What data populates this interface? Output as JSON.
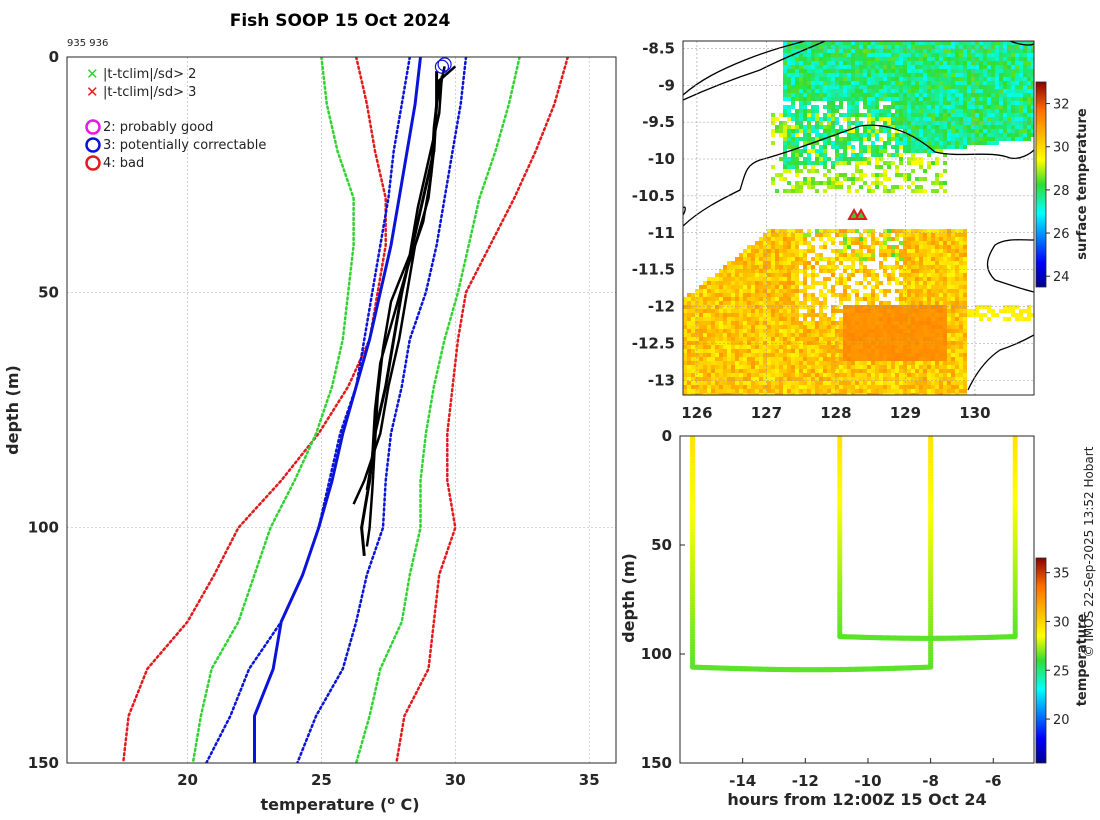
{
  "figure": {
    "title": "Fish SOOP 15 Oct 2024",
    "profile_ids": "935 936",
    "credit": "© IMOS 22-Sep-2025 13:52 Hobart"
  },
  "colors": {
    "red": "#e31a1c",
    "green": "#32d232",
    "blue": "#0a14d8",
    "magenta": "#e619e6",
    "black": "#000000",
    "grid": "#bdbdbd"
  },
  "legend": {
    "flags": [
      {
        "label": "|t-tclim|/sd> 2",
        "color": "#32d232",
        "marker": "x"
      },
      {
        "label": "|t-tclim|/sd> 3",
        "color": "#e31a1c",
        "marker": "x"
      }
    ],
    "qc": [
      {
        "label": "2: probably good",
        "color": "#e619e6"
      },
      {
        "label": "3: potentially correctable",
        "color": "#0a14d8"
      },
      {
        "label": "4: bad",
        "color": "#e31a1c"
      }
    ]
  },
  "chart_data": [
    {
      "id": "profile",
      "type": "line",
      "title": "Fish SOOP 15 Oct 2024",
      "xlabel": "temperature (",
      "xlabel_sup": "o",
      "xlabel_end": " C)",
      "ylabel": "depth (m)",
      "xlim": [
        15.5,
        36.0
      ],
      "ylim": [
        150,
        0
      ],
      "xticks": [
        20,
        25,
        30,
        35
      ],
      "yticks": [
        0,
        50,
        100,
        150
      ],
      "grid": true,
      "series": [
        {
          "name": "clim-3sd-low",
          "color": "#e31a1c",
          "dash": true,
          "width": 2.5,
          "points": [
            [
              26.3,
              0
            ],
            [
              26.5,
              5
            ],
            [
              26.7,
              10
            ],
            [
              27.0,
              20
            ],
            [
              27.4,
              30
            ],
            [
              27.4,
              40
            ],
            [
              27.1,
              50
            ],
            [
              26.8,
              60
            ],
            [
              26.0,
              70
            ],
            [
              24.9,
              80
            ],
            [
              23.5,
              90
            ],
            [
              21.9,
              100
            ],
            [
              21.0,
              110
            ],
            [
              20.0,
              120
            ],
            [
              18.5,
              130
            ],
            [
              17.8,
              140
            ],
            [
              17.6,
              150
            ]
          ]
        },
        {
          "name": "clim-2sd-low",
          "color": "#32d232",
          "dash": true,
          "width": 2.5,
          "points": [
            [
              25.0,
              0
            ],
            [
              25.2,
              10
            ],
            [
              25.6,
              20
            ],
            [
              26.2,
              30
            ],
            [
              26.2,
              40
            ],
            [
              26.0,
              50
            ],
            [
              25.8,
              60
            ],
            [
              25.4,
              70
            ],
            [
              24.8,
              80
            ],
            [
              24.0,
              90
            ],
            [
              23.1,
              100
            ],
            [
              22.5,
              110
            ],
            [
              21.9,
              120
            ],
            [
              20.9,
              130
            ],
            [
              20.5,
              140
            ],
            [
              20.2,
              150
            ]
          ]
        },
        {
          "name": "clim-1sd-low",
          "color": "#0a14d8",
          "dash": true,
          "width": 2.5,
          "points": [
            [
              28.3,
              0
            ],
            [
              28.0,
              10
            ],
            [
              27.7,
              20
            ],
            [
              27.5,
              30
            ],
            [
              27.2,
              40
            ],
            [
              26.9,
              50
            ],
            [
              26.6,
              60
            ],
            [
              26.3,
              70
            ],
            [
              25.7,
              80
            ],
            [
              25.3,
              90
            ],
            [
              24.9,
              100
            ],
            [
              24.3,
              110
            ],
            [
              23.5,
              120
            ],
            [
              22.3,
              130
            ],
            [
              21.6,
              140
            ],
            [
              20.7,
              150
            ]
          ]
        },
        {
          "name": "clim-mean",
          "color": "#0a14d8",
          "dash": false,
          "width": 3,
          "points": [
            [
              28.7,
              0
            ],
            [
              28.5,
              10
            ],
            [
              28.2,
              20
            ],
            [
              27.9,
              30
            ],
            [
              27.6,
              40
            ],
            [
              27.2,
              50
            ],
            [
              26.8,
              60
            ],
            [
              26.3,
              70
            ],
            [
              25.8,
              80
            ],
            [
              25.4,
              90
            ],
            [
              24.9,
              100
            ],
            [
              24.3,
              110
            ],
            [
              23.5,
              120
            ],
            [
              23.2,
              130
            ],
            [
              22.5,
              140
            ],
            [
              22.5,
              150
            ]
          ]
        },
        {
          "name": "clim-1sd-high",
          "color": "#0a14d8",
          "dash": true,
          "width": 2.5,
          "points": [
            [
              30.4,
              0
            ],
            [
              30.2,
              10
            ],
            [
              29.9,
              20
            ],
            [
              29.6,
              30
            ],
            [
              29.3,
              40
            ],
            [
              28.9,
              50
            ],
            [
              28.3,
              60
            ],
            [
              28.0,
              70
            ],
            [
              27.6,
              80
            ],
            [
              27.4,
              90
            ],
            [
              27.3,
              100
            ],
            [
              26.7,
              110
            ],
            [
              26.3,
              120
            ],
            [
              25.8,
              130
            ],
            [
              24.8,
              140
            ],
            [
              24.1,
              150
            ]
          ]
        },
        {
          "name": "clim-2sd-high",
          "color": "#32d232",
          "dash": true,
          "width": 2.5,
          "points": [
            [
              32.4,
              0
            ],
            [
              32.0,
              10
            ],
            [
              31.5,
              20
            ],
            [
              30.9,
              30
            ],
            [
              30.5,
              40
            ],
            [
              30.1,
              50
            ],
            [
              29.6,
              60
            ],
            [
              29.2,
              70
            ],
            [
              28.9,
              80
            ],
            [
              28.7,
              90
            ],
            [
              28.7,
              100
            ],
            [
              28.3,
              110
            ],
            [
              28.0,
              120
            ],
            [
              27.2,
              130
            ],
            [
              26.8,
              140
            ],
            [
              26.3,
              150
            ]
          ]
        },
        {
          "name": "clim-3sd-high",
          "color": "#e31a1c",
          "dash": true,
          "width": 2.5,
          "points": [
            [
              34.2,
              0
            ],
            [
              33.7,
              10
            ],
            [
              33.0,
              20
            ],
            [
              32.2,
              30
            ],
            [
              31.3,
              40
            ],
            [
              30.4,
              50
            ],
            [
              30.1,
              60
            ],
            [
              29.9,
              70
            ],
            [
              29.7,
              80
            ],
            [
              29.7,
              90
            ],
            [
              30.0,
              100
            ],
            [
              29.4,
              110
            ],
            [
              29.2,
              120
            ],
            [
              29.0,
              130
            ],
            [
              28.1,
              140
            ],
            [
              27.8,
              150
            ]
          ]
        },
        {
          "name": "profile-935-a",
          "color": "#000000",
          "dash": false,
          "width": 2.5,
          "points": [
            [
              29.6,
              2
            ],
            [
              29.3,
              10
            ],
            [
              29.2,
              20
            ],
            [
              29.0,
              30
            ],
            [
              28.5,
              40
            ],
            [
              28.2,
              50
            ],
            [
              27.9,
              60
            ],
            [
              27.5,
              70
            ],
            [
              27.2,
              80
            ],
            [
              26.6,
              90
            ],
            [
              26.2,
              95
            ]
          ]
        },
        {
          "name": "profile-935-b",
          "color": "#000000",
          "dash": false,
          "width": 2.5,
          "points": [
            [
              30.0,
              2
            ],
            [
              29.4,
              5
            ],
            [
              29.2,
              15
            ],
            [
              29.1,
              25
            ],
            [
              28.8,
              35
            ],
            [
              28.2,
              45
            ],
            [
              27.7,
              55
            ],
            [
              27.2,
              65
            ],
            [
              27.0,
              75
            ],
            [
              26.9,
              85
            ],
            [
              26.7,
              92
            ]
          ]
        },
        {
          "name": "profile-936-a",
          "color": "#000000",
          "dash": false,
          "width": 3,
          "points": [
            [
              29.3,
              3
            ],
            [
              29.3,
              10
            ],
            [
              29.2,
              20
            ],
            [
              28.8,
              30
            ],
            [
              28.4,
              40
            ],
            [
              28.0,
              50
            ],
            [
              27.7,
              60
            ],
            [
              27.4,
              70
            ],
            [
              27.0,
              80
            ],
            [
              26.8,
              90
            ],
            [
              26.5,
              100
            ],
            [
              26.6,
              106
            ]
          ]
        },
        {
          "name": "profile-936-b",
          "color": "#000000",
          "dash": false,
          "width": 2.5,
          "points": [
            [
              29.5,
              4
            ],
            [
              29.4,
              12
            ],
            [
              29.0,
              22
            ],
            [
              28.6,
              32
            ],
            [
              28.3,
              42
            ],
            [
              27.6,
              52
            ],
            [
              27.3,
              62
            ],
            [
              27.1,
              72
            ],
            [
              27.0,
              82
            ],
            [
              26.9,
              92
            ],
            [
              26.8,
              100
            ],
            [
              26.7,
              104
            ]
          ]
        }
      ],
      "qc_markers": [
        {
          "temperature": 29.5,
          "depth": 0.8,
          "flag": 3
        },
        {
          "temperature": 29.6,
          "depth": 0.3,
          "flag": 3
        }
      ]
    },
    {
      "id": "map",
      "type": "heatmap",
      "xlim": [
        125.8,
        130.85
      ],
      "ylim": [
        -13.2,
        -8.4
      ],
      "xticks": [
        126,
        127,
        128,
        129,
        130
      ],
      "yticks": [
        -8.5,
        -9,
        -9.5,
        -10,
        -10.5,
        -11,
        -11.5,
        -12,
        -12.5,
        -13
      ],
      "colorbar": {
        "label": "surface temperature",
        "range": [
          23.5,
          33
        ],
        "ticks": [
          24,
          26,
          28,
          30,
          32
        ]
      },
      "regions": [
        {
          "name": "northeast-warm-band",
          "temp_range": [
            27.0,
            28.5
          ]
        },
        {
          "name": "central-patchy-band",
          "temp_range": [
            28.3,
            29.5
          ]
        },
        {
          "name": "south-warm-pool",
          "temp_range": [
            29.5,
            31.0
          ]
        }
      ],
      "stations": [
        {
          "lon": 128.28,
          "lat": -10.87,
          "label": "935"
        },
        {
          "lon": 128.45,
          "lat": -10.87,
          "label": "936"
        }
      ]
    },
    {
      "id": "section",
      "type": "scatter",
      "xlabel": "hours from 12:00Z 15 Oct 24",
      "ylabel": "depth (m)",
      "xlim": [
        -16,
        -4.7
      ],
      "ylim": [
        150,
        0
      ],
      "xticks": [
        -14,
        -12,
        -10,
        -8,
        -6
      ],
      "yticks": [
        0,
        50,
        100,
        150
      ],
      "colorbar": {
        "label": "temperature",
        "range": [
          15.5,
          36.5
        ],
        "ticks": [
          20,
          25,
          30,
          35
        ]
      },
      "casts": [
        {
          "t_down": -15.6,
          "t_up": -8.0,
          "max_depth": 106
        },
        {
          "t_down": -10.9,
          "t_up": -5.3,
          "max_depth": 92
        }
      ],
      "surface_temp": 29.5,
      "bottom_temp": 26.5
    }
  ]
}
